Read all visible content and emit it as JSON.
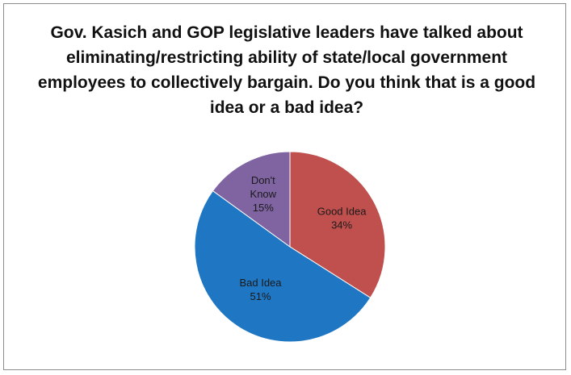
{
  "chart_data": {
    "type": "pie",
    "title": "Gov. Kasich and GOP legislative leaders have talked about eliminating/restricting ability of state/local government employees to collectively bargain.  Do you think that is a good idea or a bad idea?",
    "slices": [
      {
        "label": "Good Idea",
        "value": 34,
        "value_label": "34%",
        "label_lines": [
          "Good Idea",
          "34%"
        ],
        "color": "#c0504d"
      },
      {
        "label": "Bad Idea",
        "value": 51,
        "value_label": "51%",
        "label_lines": [
          "Bad Idea",
          "51%"
        ],
        "color": "#1f77c4"
      },
      {
        "label": "Don't Know",
        "value": 15,
        "value_label": "15%",
        "label_lines": [
          "Don't",
          "Know",
          "15%"
        ],
        "color": "#8064a2"
      }
    ],
    "start_angle": "12 o'clock",
    "direction": "clockwise",
    "legend": "none",
    "data_labels": "inside"
  }
}
